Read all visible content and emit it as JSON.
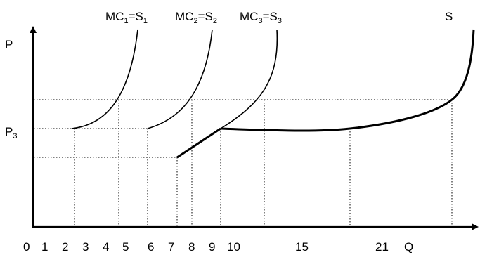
{
  "axes": {
    "y_label": "P",
    "x_label": "Q",
    "price_tick": "P",
    "price_tick_sub": "3",
    "x_ticks": [
      "0",
      "1",
      "2",
      "3",
      "4",
      "5",
      "6",
      "7",
      "8",
      "9",
      "10",
      "15",
      "21"
    ]
  },
  "curves": [
    {
      "mc": "MC",
      "mc_sub": "1",
      "eq": "=S",
      "s_sub": "1"
    },
    {
      "mc": "MC",
      "mc_sub": "2",
      "eq": "=S",
      "s_sub": "2"
    },
    {
      "mc": "MC",
      "mc_sub": "3",
      "eq": "=S",
      "s_sub": "3"
    }
  ],
  "market_supply_label": "S"
}
